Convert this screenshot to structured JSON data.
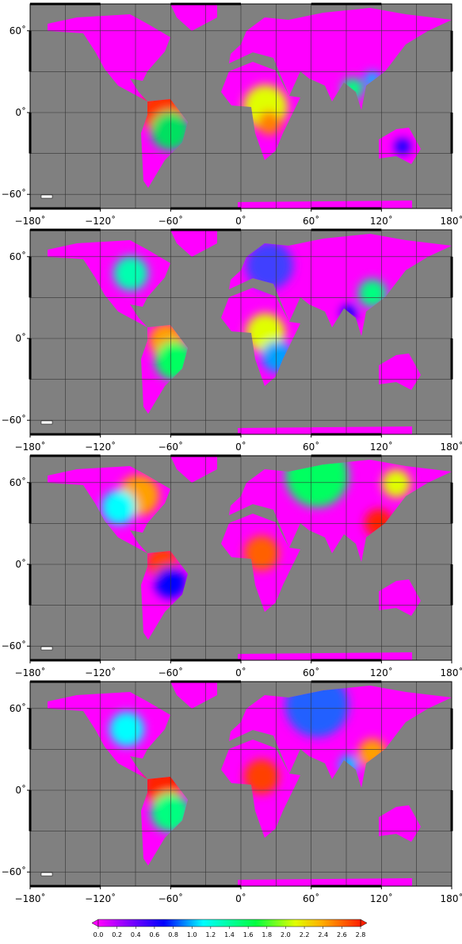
{
  "lon_ticks": [
    {
      "value": -180,
      "label": "−180˚"
    },
    {
      "value": -120,
      "label": "−120˚"
    },
    {
      "value": -60,
      "label": "−60˚"
    },
    {
      "value": 0,
      "label": "0˚"
    },
    {
      "value": 60,
      "label": "60˚"
    },
    {
      "value": 120,
      "label": "120˚"
    },
    {
      "value": 180,
      "label": "180˚"
    }
  ],
  "lat_ticks": [
    {
      "value": 60,
      "label": "60˚"
    },
    {
      "value": 0,
      "label": "0˚"
    },
    {
      "value": -60,
      "label": "−60˚"
    }
  ],
  "colorbar": {
    "lim": [
      0,
      2.8
    ],
    "ticks": [
      {
        "value": 0,
        "label": "0.0"
      },
      {
        "value": 0.2,
        "label": "0.2"
      },
      {
        "value": 0.4,
        "label": "0.4"
      },
      {
        "value": 0.6,
        "label": "0.6"
      },
      {
        "value": 0.8,
        "label": "0.8"
      },
      {
        "value": 1,
        "label": "1.0"
      },
      {
        "value": 1.2,
        "label": "1.2"
      },
      {
        "value": 1.4,
        "label": "1.4"
      },
      {
        "value": 1.6,
        "label": "1.6"
      },
      {
        "value": 1.8,
        "label": "1.8"
      },
      {
        "value": 2,
        "label": "2.0"
      },
      {
        "value": 2.2,
        "label": "2.2"
      },
      {
        "value": 2.4,
        "label": "2.4"
      },
      {
        "value": 2.6,
        "label": "2.6"
      },
      {
        "value": 2.8,
        "label": "2.8"
      }
    ]
  }
}
